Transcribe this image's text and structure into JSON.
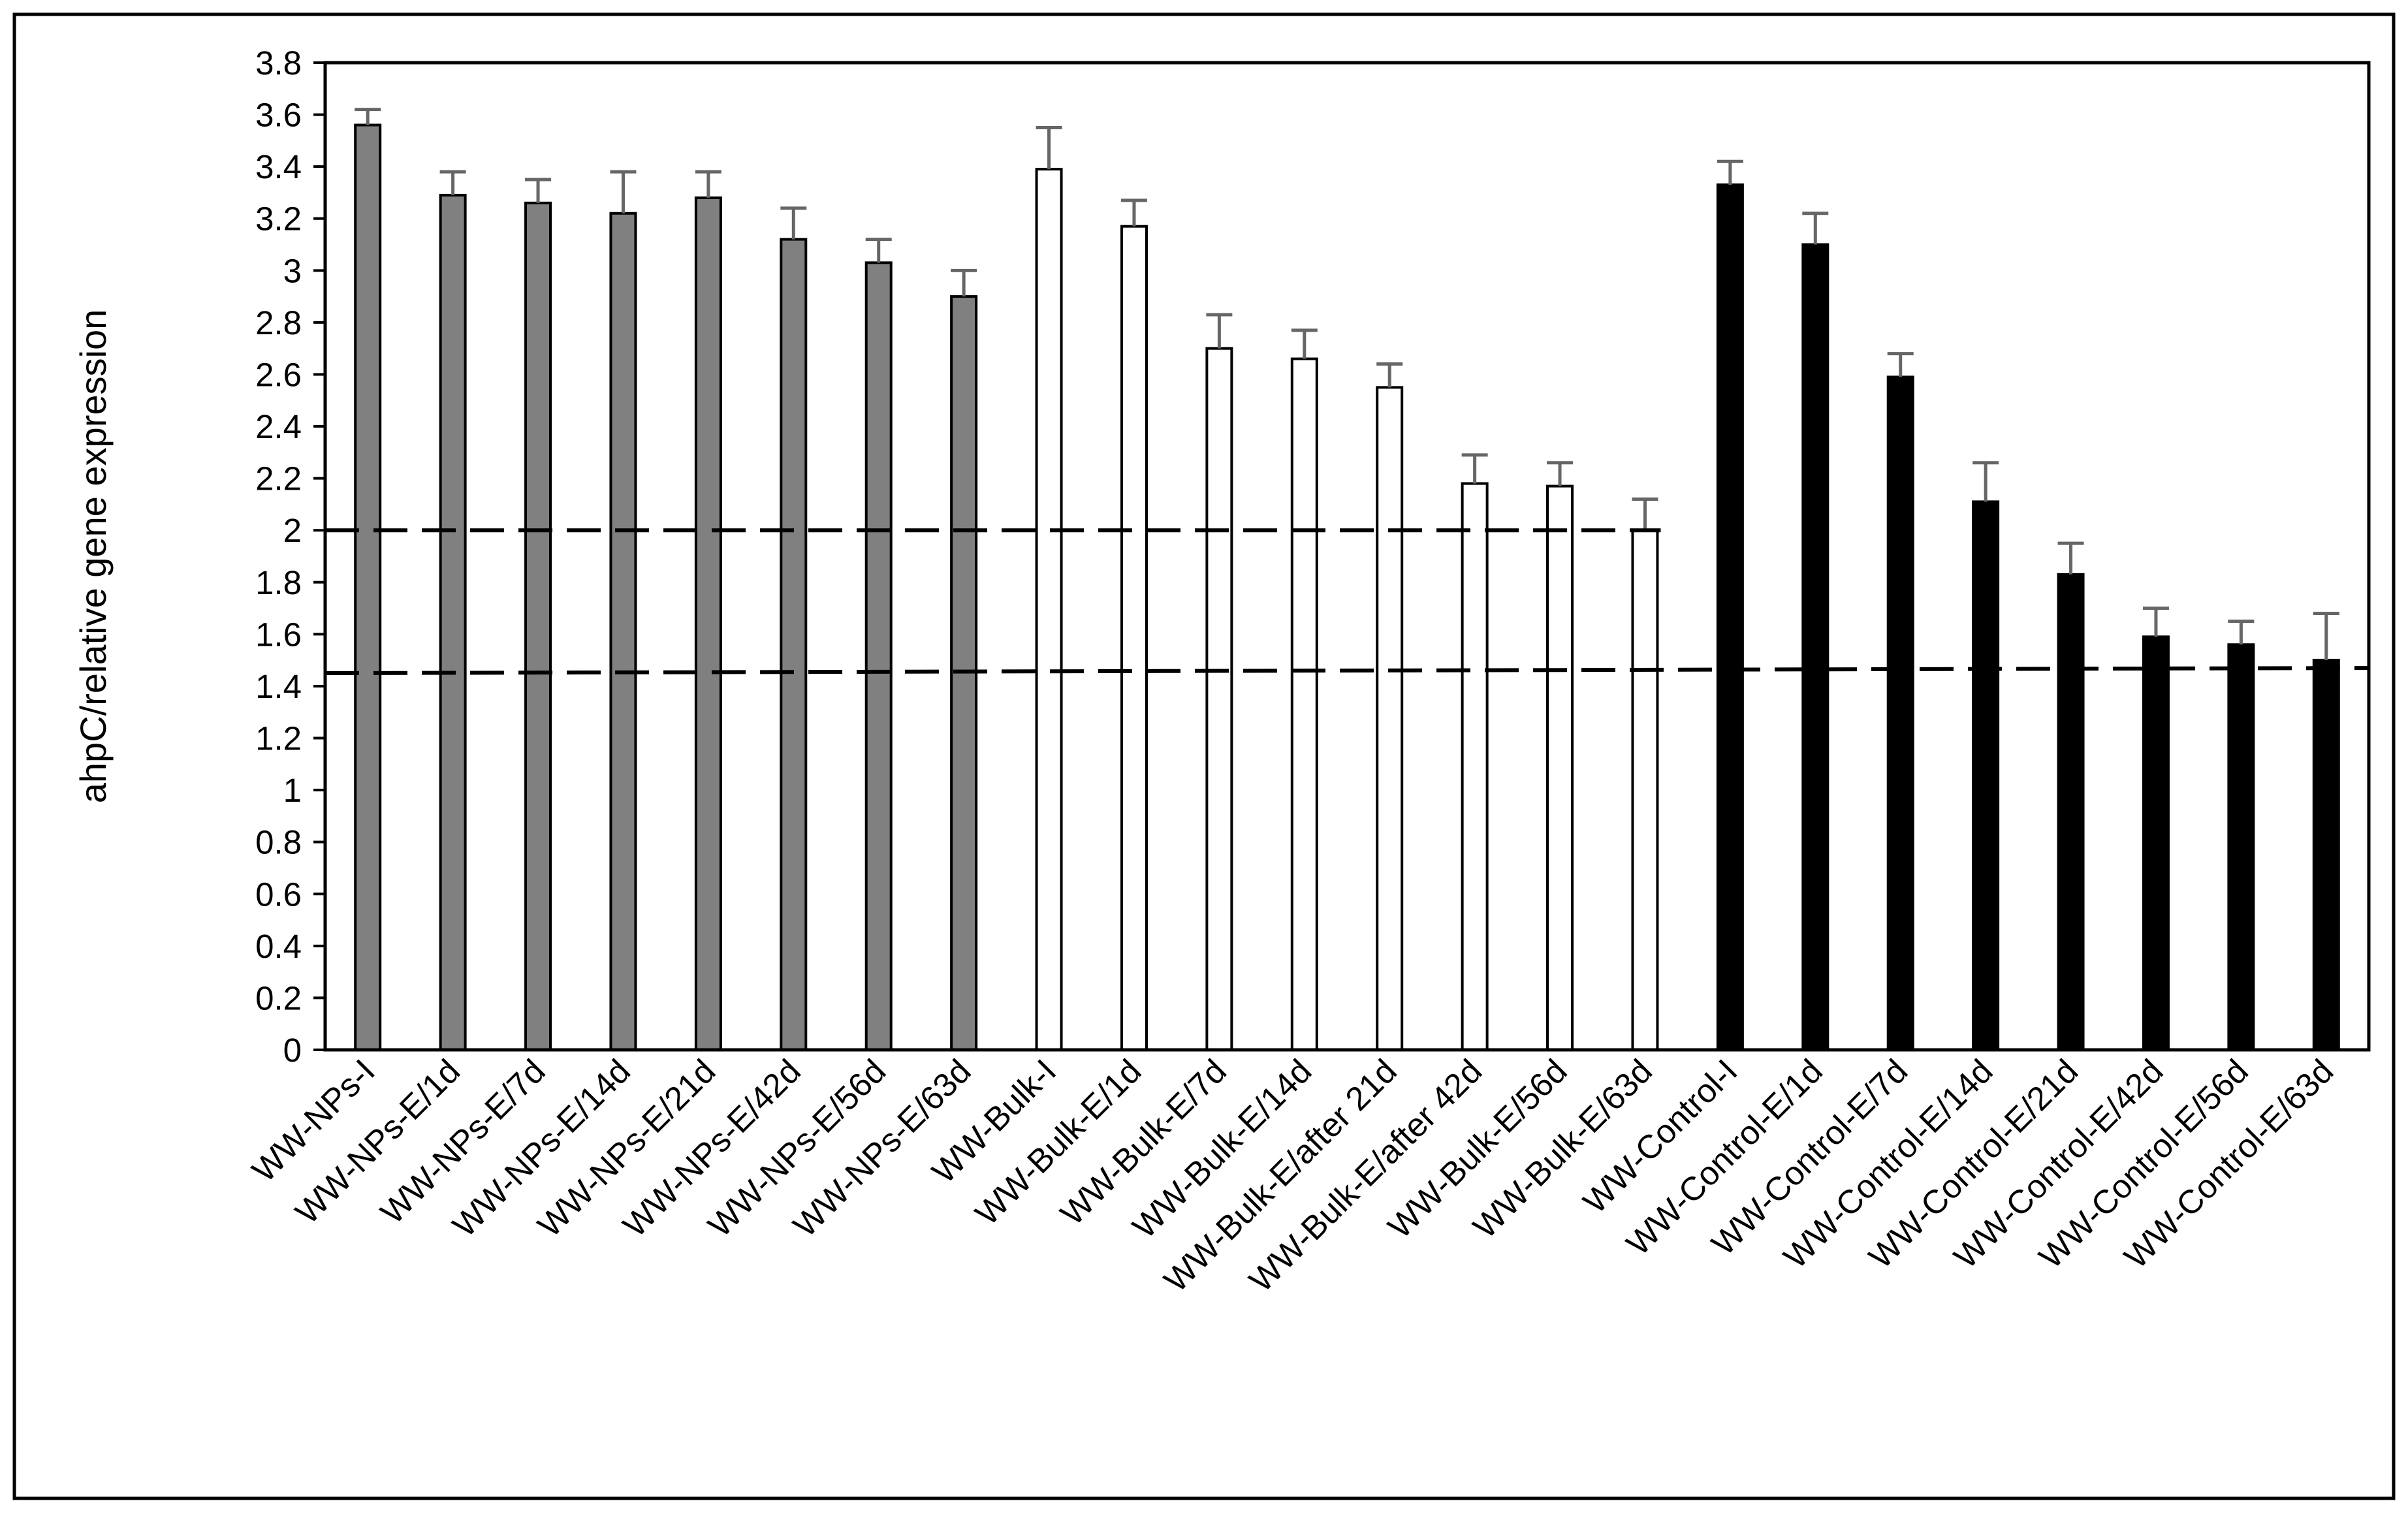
{
  "chart_data": {
    "type": "bar",
    "title": "",
    "xlabel": "",
    "ylabel": "ahpC/relative gene expression",
    "ylim": [
      0,
      3.8
    ],
    "ytick_step": 0.2,
    "yticks": [
      "0",
      "0.2",
      "0.4",
      "0.6",
      "0.8",
      "1",
      "1.2",
      "1.4",
      "1.6",
      "1.8",
      "2",
      "2.2",
      "2.4",
      "2.6",
      "2.8",
      "3",
      "3.2",
      "3.4",
      "3.6",
      "3.8"
    ],
    "grid": false,
    "legend": "none",
    "categories": [
      "WW-NPs-I",
      "WW-NPs-E/1d",
      "WW-NPs-E/7d",
      "WW-NPs-E/14d",
      "WW-NPs-E/21d",
      "WW-NPs-E/42d",
      "WW-NPs-E/56d",
      "WW-NPs-E/63d",
      "WW-Bulk-I",
      "WW-Bulk-E/1d",
      "WW-Bulk-E/7d",
      "WW-Bulk-E/14d",
      "WW-Bulk-E/after 21d",
      "WW-Bulk-E/after 42d",
      "WW-Bulk-E/56d",
      "WW-Bulk-E/63d",
      "WW-Control-I",
      "WW-Control-E/1d",
      "WW-Control-E/7d",
      "WW-Control-E/14d",
      "WW-Control-E/21d",
      "WW-Control-E/42d",
      "WW-Control-E/56d",
      "WW-Control-E/63d"
    ],
    "values": [
      3.56,
      3.29,
      3.26,
      3.22,
      3.28,
      3.12,
      3.03,
      2.9,
      3.39,
      3.17,
      2.7,
      2.66,
      2.55,
      2.18,
      2.17,
      2.0,
      3.33,
      3.1,
      2.59,
      2.11,
      1.83,
      1.59,
      1.56,
      1.5
    ],
    "errors": [
      0.06,
      0.09,
      0.09,
      0.16,
      0.1,
      0.12,
      0.09,
      0.1,
      0.16,
      0.1,
      0.13,
      0.11,
      0.09,
      0.11,
      0.09,
      0.12,
      0.09,
      0.12,
      0.09,
      0.15,
      0.12,
      0.11,
      0.09,
      0.18
    ],
    "groups": [
      {
        "start": 0,
        "end": 7,
        "fill": "#808080"
      },
      {
        "start": 8,
        "end": 15,
        "fill": "#ffffff"
      },
      {
        "start": 16,
        "end": 23,
        "fill": "#000000"
      }
    ],
    "reference_lines": [
      {
        "y_start": 2.0,
        "y_end": 2.0,
        "x_from": 0,
        "x_to": 15,
        "style": "dashed"
      },
      {
        "y_start": 1.45,
        "y_end": 1.47,
        "x_from": 0,
        "x_to": 23,
        "style": "dashed"
      }
    ],
    "colors": {
      "bar_edge": "#000000",
      "error_bar": "#666666",
      "reference_line": "#000000"
    }
  }
}
